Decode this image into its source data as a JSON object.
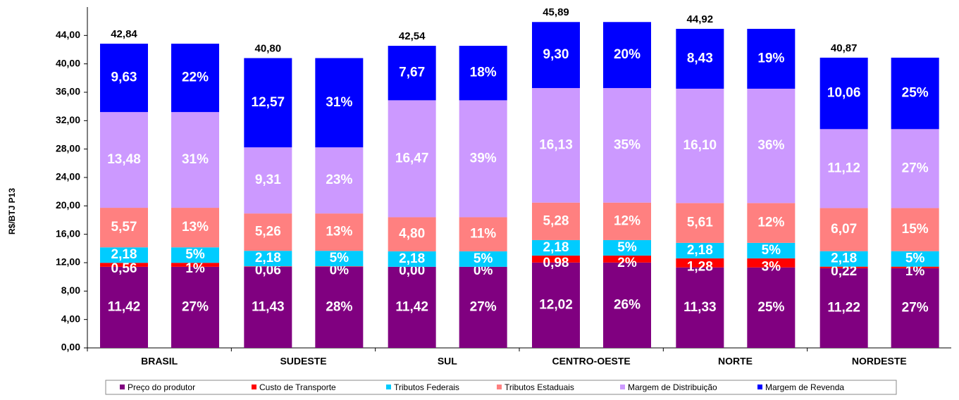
{
  "chart_data": {
    "type": "stacked-paired-bar",
    "y_label": "R$/BTJ P13",
    "categories": [
      "BRASIL",
      "SUDESTE",
      "SUL",
      "CENTRO-OESTE",
      "NORTE",
      "NORDESTE"
    ],
    "ylim": [
      0,
      48
    ],
    "yticks": [
      {
        "value": 0,
        "label": "0,00"
      },
      {
        "value": 4,
        "label": "4,00"
      },
      {
        "value": 8,
        "label": "8,00"
      },
      {
        "value": 12,
        "label": "12,00"
      },
      {
        "value": 16,
        "label": "16,00"
      },
      {
        "value": 20,
        "label": "20,00"
      },
      {
        "value": 24,
        "label": "24,00"
      },
      {
        "value": 28,
        "label": "28,00"
      },
      {
        "value": 32,
        "label": "32,00"
      },
      {
        "value": 36,
        "label": "36,00"
      },
      {
        "value": 40,
        "label": "40,00"
      },
      {
        "value": 44,
        "label": "44,00"
      }
    ],
    "totals": [
      42.84,
      40.8,
      42.54,
      45.89,
      44.92,
      40.87
    ],
    "total_labels": [
      "42,84",
      "40,80",
      "42,54",
      "45,89",
      "44,92",
      "40,87"
    ],
    "series": [
      {
        "name": "Preço do produtor",
        "color": "#800080",
        "values": [
          11.42,
          11.43,
          11.42,
          12.02,
          11.33,
          11.22
        ],
        "value_labels": [
          "11,42",
          "11,43",
          "11,42",
          "12,02",
          "11,33",
          "11,22"
        ],
        "percents": [
          27,
          28,
          27,
          26,
          25,
          27
        ],
        "percent_labels": [
          "27%",
          "28%",
          "27%",
          "26%",
          "25%",
          "27%"
        ]
      },
      {
        "name": "Custo de Transporte",
        "color": "#ff0000",
        "values": [
          0.56,
          0.06,
          0.0,
          0.98,
          1.28,
          0.22
        ],
        "value_labels": [
          "0,56",
          "0,06",
          "0,00",
          "0,98",
          "1,28",
          "0,22"
        ],
        "percents": [
          1,
          0,
          0,
          2,
          3,
          1
        ],
        "percent_labels": [
          "1%",
          "0%",
          "0%",
          "2%",
          "3%",
          "1%"
        ]
      },
      {
        "name": "Tributos Federais",
        "color": "#00ccff",
        "values": [
          2.18,
          2.18,
          2.18,
          2.18,
          2.18,
          2.18
        ],
        "value_labels": [
          "2,18",
          "2,18",
          "2,18",
          "2,18",
          "2,18",
          "2,18"
        ],
        "percents": [
          5,
          5,
          5,
          5,
          5,
          5
        ],
        "percent_labels": [
          "5%",
          "5%",
          "5%",
          "5%",
          "5%",
          "5%"
        ]
      },
      {
        "name": "Tributos Estaduais",
        "color": "#ff8080",
        "values": [
          5.57,
          5.26,
          4.8,
          5.28,
          5.61,
          6.07
        ],
        "value_labels": [
          "5,57",
          "5,26",
          "4,80",
          "5,28",
          "5,61",
          "6,07"
        ],
        "percents": [
          13,
          13,
          11,
          12,
          12,
          15
        ],
        "percent_labels": [
          "13%",
          "13%",
          "11%",
          "12%",
          "12%",
          "15%"
        ]
      },
      {
        "name": "Margem de Distribuição",
        "color": "#cc99ff",
        "values": [
          13.48,
          9.31,
          16.47,
          16.13,
          16.1,
          11.12
        ],
        "value_labels": [
          "13,48",
          "9,31",
          "16,47",
          "16,13",
          "16,10",
          "11,12"
        ],
        "percents": [
          31,
          23,
          39,
          35,
          36,
          27
        ],
        "percent_labels": [
          "31%",
          "23%",
          "39%",
          "35%",
          "36%",
          "27%"
        ]
      },
      {
        "name": "Margem de Revenda",
        "color": "#0000ff",
        "values": [
          9.63,
          12.57,
          7.67,
          9.3,
          8.43,
          10.06
        ],
        "value_labels": [
          "9,63",
          "12,57",
          "7,67",
          "9,30",
          "8,43",
          "10,06"
        ],
        "percents": [
          22,
          31,
          18,
          20,
          19,
          25
        ],
        "percent_labels": [
          "22%",
          "31%",
          "18%",
          "20%",
          "19%",
          "25%"
        ]
      }
    ]
  }
}
